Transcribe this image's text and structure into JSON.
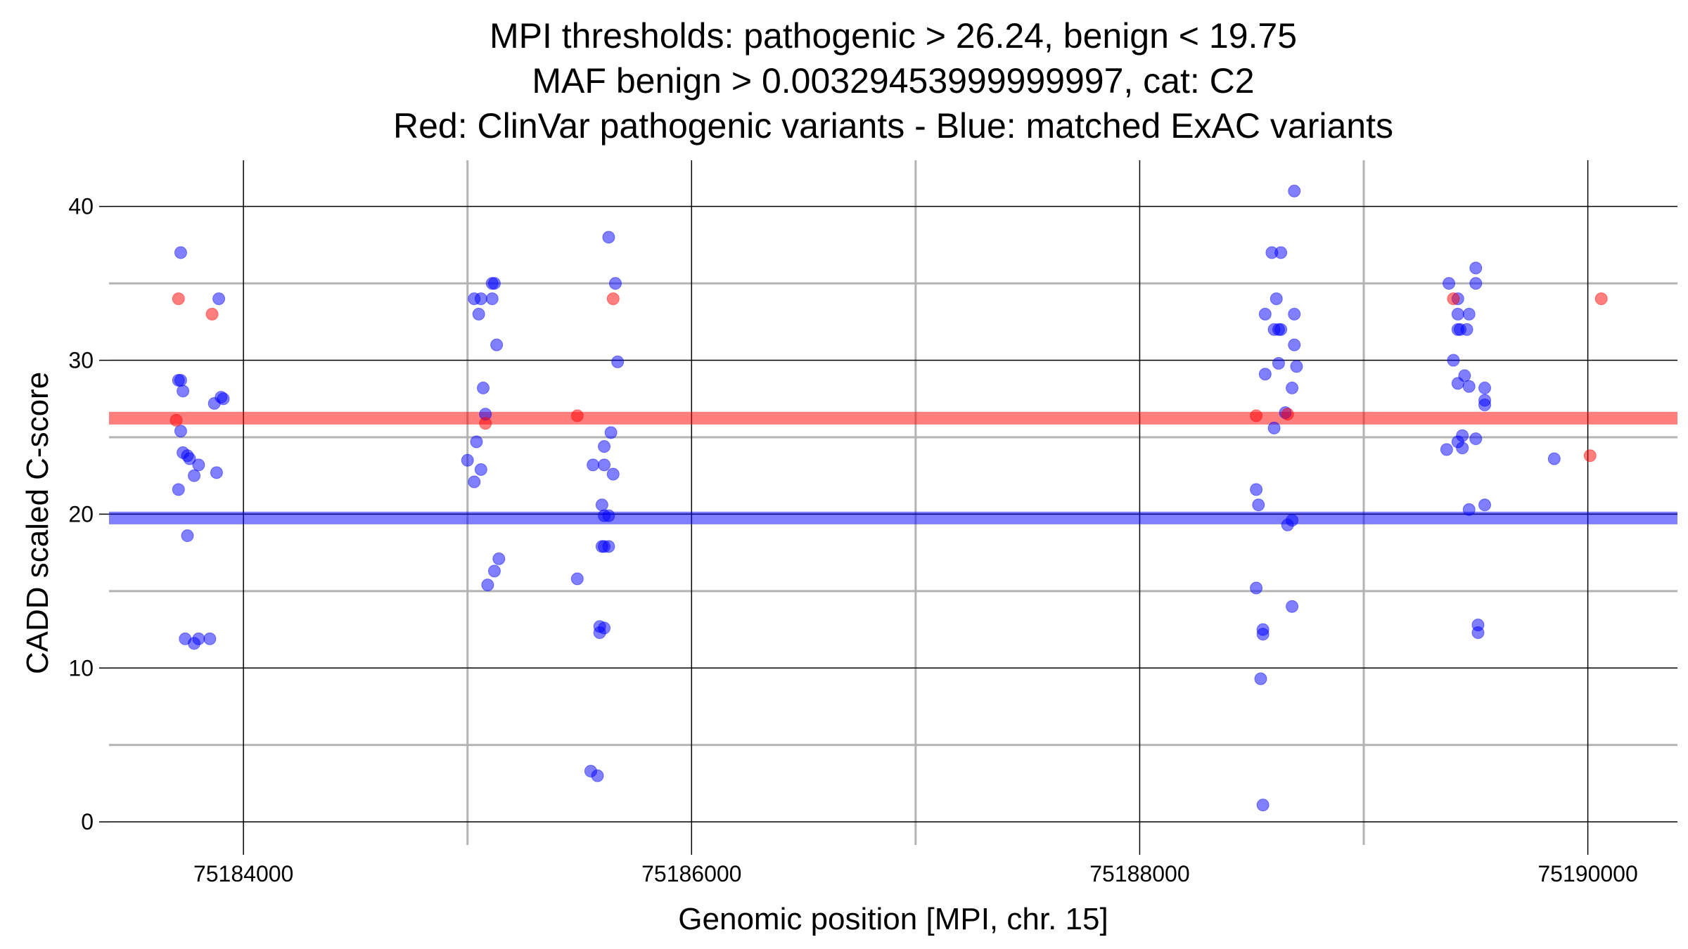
{
  "chart_data": {
    "type": "scatter",
    "title_lines": [
      "MPI thresholds: pathogenic > 26.24, benign < 19.75",
      "MAF benign > 0.00329453999999997, cat: C2",
      "Red: ClinVar pathogenic variants - Blue: matched ExAC variants"
    ],
    "xlabel": "Genomic position [MPI, chr. 15]",
    "ylabel": "CADD scaled C-score",
    "xlim": [
      75183400,
      75190400
    ],
    "ylim": [
      -1.5,
      43
    ],
    "x_ticks": [
      75184000,
      75186000,
      75188000,
      75190000
    ],
    "x_tick_labels": [
      "75184000",
      "75186000",
      "75188000",
      "75190000"
    ],
    "x_minor_grid": [
      75185000,
      75187000,
      75189000
    ],
    "y_ticks": [
      0,
      10,
      20,
      30,
      40
    ],
    "y_tick_labels": [
      "0",
      "10",
      "20",
      "30",
      "40"
    ],
    "y_minor_grid": [
      5,
      15,
      25,
      35
    ],
    "grid": true,
    "colors": {
      "pathogenic": "#ff0000",
      "benign": "#0000ff",
      "major_grid": "#000000",
      "minor_grid": "#b3b3b3"
    },
    "thresholds": [
      {
        "name": "pathogenic",
        "y": 26.24,
        "color": "#ff0000"
      },
      {
        "name": "benign",
        "y": 19.75,
        "color": "#0000ff"
      }
    ],
    "series": [
      {
        "color": "#0000ff",
        "points": [
          [
            75183720,
            37.0
          ],
          [
            75183710,
            28.7
          ],
          [
            75183720,
            28.7
          ],
          [
            75183730,
            28.0
          ],
          [
            75183720,
            25.4
          ],
          [
            75183730,
            24.0
          ],
          [
            75183750,
            23.8
          ],
          [
            75183760,
            23.6
          ],
          [
            75183710,
            21.6
          ],
          [
            75183750,
            18.6
          ],
          [
            75183800,
            23.2
          ],
          [
            75183780,
            22.5
          ],
          [
            75183870,
            27.2
          ],
          [
            75183900,
            27.6
          ],
          [
            75183910,
            27.5
          ],
          [
            75183880,
            22.7
          ],
          [
            75183740,
            11.9
          ],
          [
            75183780,
            11.6
          ],
          [
            75183800,
            11.9
          ],
          [
            75183850,
            11.9
          ],
          [
            75183890,
            34.0
          ],
          [
            75185030,
            34.0
          ],
          [
            75185060,
            34.0
          ],
          [
            75185110,
            35.0
          ],
          [
            75185120,
            35.0
          ],
          [
            75185110,
            34.0
          ],
          [
            75185050,
            33.0
          ],
          [
            75185130,
            31.0
          ],
          [
            75185070,
            28.2
          ],
          [
            75185080,
            26.5
          ],
          [
            75185040,
            24.7
          ],
          [
            75185000,
            23.5
          ],
          [
            75185060,
            22.9
          ],
          [
            75185030,
            22.1
          ],
          [
            75185140,
            17.1
          ],
          [
            75185120,
            16.3
          ],
          [
            75185090,
            15.4
          ],
          [
            75185630,
            38.0
          ],
          [
            75185660,
            35.0
          ],
          [
            75185670,
            29.9
          ],
          [
            75185640,
            25.3
          ],
          [
            75185610,
            24.4
          ],
          [
            75185560,
            23.2
          ],
          [
            75185610,
            23.2
          ],
          [
            75185650,
            22.6
          ],
          [
            75185600,
            20.6
          ],
          [
            75185610,
            19.9
          ],
          [
            75185630,
            19.9
          ],
          [
            75185600,
            17.9
          ],
          [
            75185610,
            17.9
          ],
          [
            75185630,
            17.9
          ],
          [
            75185490,
            15.8
          ],
          [
            75185590,
            12.7
          ],
          [
            75185610,
            12.6
          ],
          [
            75185590,
            12.3
          ],
          [
            75185550,
            3.3
          ],
          [
            75185580,
            3.0
          ],
          [
            75188690,
            41.0
          ],
          [
            75188590,
            37.0
          ],
          [
            75188630,
            37.0
          ],
          [
            75188610,
            34.0
          ],
          [
            75188560,
            33.0
          ],
          [
            75188690,
            33.0
          ],
          [
            75188600,
            32.0
          ],
          [
            75188620,
            32.0
          ],
          [
            75188630,
            32.0
          ],
          [
            75188690,
            31.0
          ],
          [
            75188620,
            29.8
          ],
          [
            75188700,
            29.6
          ],
          [
            75188560,
            29.1
          ],
          [
            75188680,
            28.2
          ],
          [
            75188650,
            26.6
          ],
          [
            75188600,
            25.6
          ],
          [
            75188520,
            21.6
          ],
          [
            75188530,
            20.6
          ],
          [
            75188680,
            19.6
          ],
          [
            75188660,
            19.3
          ],
          [
            75188520,
            15.2
          ],
          [
            75188550,
            12.5
          ],
          [
            75188550,
            12.2
          ],
          [
            75188680,
            14.0
          ],
          [
            75188540,
            9.3
          ],
          [
            75188550,
            1.1
          ],
          [
            75189380,
            35.0
          ],
          [
            75189500,
            36.0
          ],
          [
            75189500,
            35.0
          ],
          [
            75189420,
            34.0
          ],
          [
            75189420,
            33.0
          ],
          [
            75189470,
            33.0
          ],
          [
            75189420,
            32.0
          ],
          [
            75189430,
            32.0
          ],
          [
            75189460,
            32.0
          ],
          [
            75189400,
            30.0
          ],
          [
            75189450,
            29.0
          ],
          [
            75189420,
            28.5
          ],
          [
            75189470,
            28.3
          ],
          [
            75189540,
            28.2
          ],
          [
            75189540,
            27.4
          ],
          [
            75189540,
            27.1
          ],
          [
            75189440,
            25.1
          ],
          [
            75189500,
            24.9
          ],
          [
            75189420,
            24.7
          ],
          [
            75189440,
            24.3
          ],
          [
            75189370,
            24.2
          ],
          [
            75189470,
            20.3
          ],
          [
            75189540,
            20.6
          ],
          [
            75189510,
            12.8
          ],
          [
            75189510,
            12.3
          ],
          [
            75189850,
            23.6
          ]
        ]
      },
      {
        "color": "#ff0000",
        "points": [
          [
            75183710,
            34.0
          ],
          [
            75183860,
            33.0
          ],
          [
            75183700,
            26.1
          ],
          [
            75185080,
            25.9
          ],
          [
            75185650,
            34.0
          ],
          [
            75185490,
            26.4
          ],
          [
            75188520,
            26.4
          ],
          [
            75188660,
            26.5
          ],
          [
            75189400,
            34.0
          ],
          [
            75190060,
            34.0
          ],
          [
            75190010,
            23.8
          ]
        ]
      }
    ]
  }
}
